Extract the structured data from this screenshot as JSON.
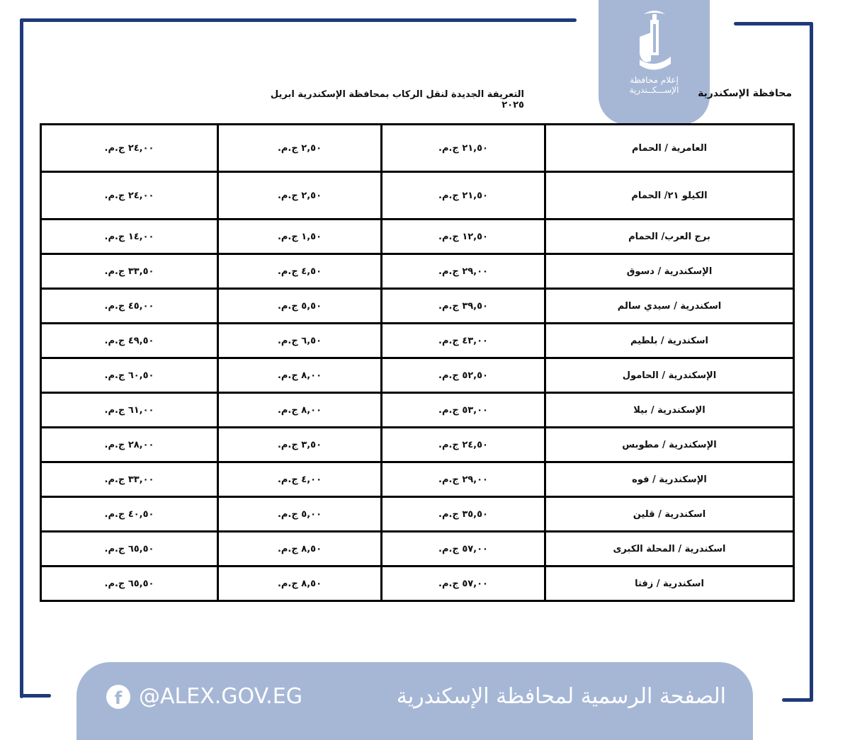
{
  "header": {
    "governorate": "محافظة الإسكندرية",
    "title": "التعريفة الجديدة لنقل الركاب بمحافظة الإسكندرية ابريل ٢٠٢٥",
    "logo_text_line1": "إعلام محافظة",
    "logo_text_line2": "الإســـكــندرية"
  },
  "colors": {
    "frame": "#1f3a78",
    "brand_blue": "#a6b7d6"
  },
  "table": {
    "rows": [
      {
        "route": "العامرية / الحمام",
        "c1": "٢١,٥٠ ج.م.",
        "c2": "٢,٥٠ ج.م.",
        "c3": "٢٤,٠٠ ج.م."
      },
      {
        "route": "الكيلو ٢١/ الحمام",
        "c1": "٢١,٥٠ ج.م.",
        "c2": "٢,٥٠ ج.م.",
        "c3": "٢٤,٠٠ ج.م."
      },
      {
        "route": "برج العرب/ الحمام",
        "c1": "١٢,٥٠ ج.م.",
        "c2": "١,٥٠ ج.م.",
        "c3": "١٤,٠٠ ج.م."
      },
      {
        "route": "الإسكندرية / دسوق",
        "c1": "٢٩,٠٠ ج.م.",
        "c2": "٤,٥٠ ج.م.",
        "c3": "٣٣,٥٠ ج.م."
      },
      {
        "route": "اسكندرية / سيدي سالم",
        "c1": "٣٩,٥٠ ج.م.",
        "c2": "٥,٥٠ ج.م.",
        "c3": "٤٥,٠٠ ج.م."
      },
      {
        "route": "اسكندرية / بلطيم",
        "c1": "٤٣,٠٠ ج.م.",
        "c2": "٦,٥٠ ج.م.",
        "c3": "٤٩,٥٠ ج.م."
      },
      {
        "route": "الإسكندرية / الحامول",
        "c1": "٥٢,٥٠ ج.م.",
        "c2": "٨,٠٠ ج.م.",
        "c3": "٦٠,٥٠ ج.م."
      },
      {
        "route": "الإسكندرية / بيلا",
        "c1": "٥٣,٠٠ ج.م.",
        "c2": "٨,٠٠ ج.م.",
        "c3": "٦١,٠٠ ج.م."
      },
      {
        "route": "الإسكندرية / مطوبس",
        "c1": "٢٤,٥٠ ج.م.",
        "c2": "٣,٥٠ ج.م.",
        "c3": "٢٨,٠٠ ج.م."
      },
      {
        "route": "الإسكندرية / فوه",
        "c1": "٢٩,٠٠ ج.م.",
        "c2": "٤,٠٠ ج.م.",
        "c3": "٣٣,٠٠ ج.م."
      },
      {
        "route": "اسكندرية / قلين",
        "c1": "٣٥,٥٠ ج.م.",
        "c2": "٥,٠٠ ج.م.",
        "c3": "٤٠,٥٠ ج.م."
      },
      {
        "route": "اسكندرية / المحلة الكبرى",
        "c1": "٥٧,٠٠ ج.م.",
        "c2": "٨,٥٠ ج.م.",
        "c3": "٦٥,٥٠ ج.م."
      },
      {
        "route": "اسكندرية / زفتا",
        "c1": "٥٧,٠٠ ج.م.",
        "c2": "٨,٥٠ ج.م.",
        "c3": "٦٥,٥٠ ج.م."
      }
    ]
  },
  "footer": {
    "facebook_icon": "f",
    "handle": "@ALEX.GOV.EG",
    "official_page": "الصفحة الرسمية لمحافظة الإسكندرية"
  }
}
